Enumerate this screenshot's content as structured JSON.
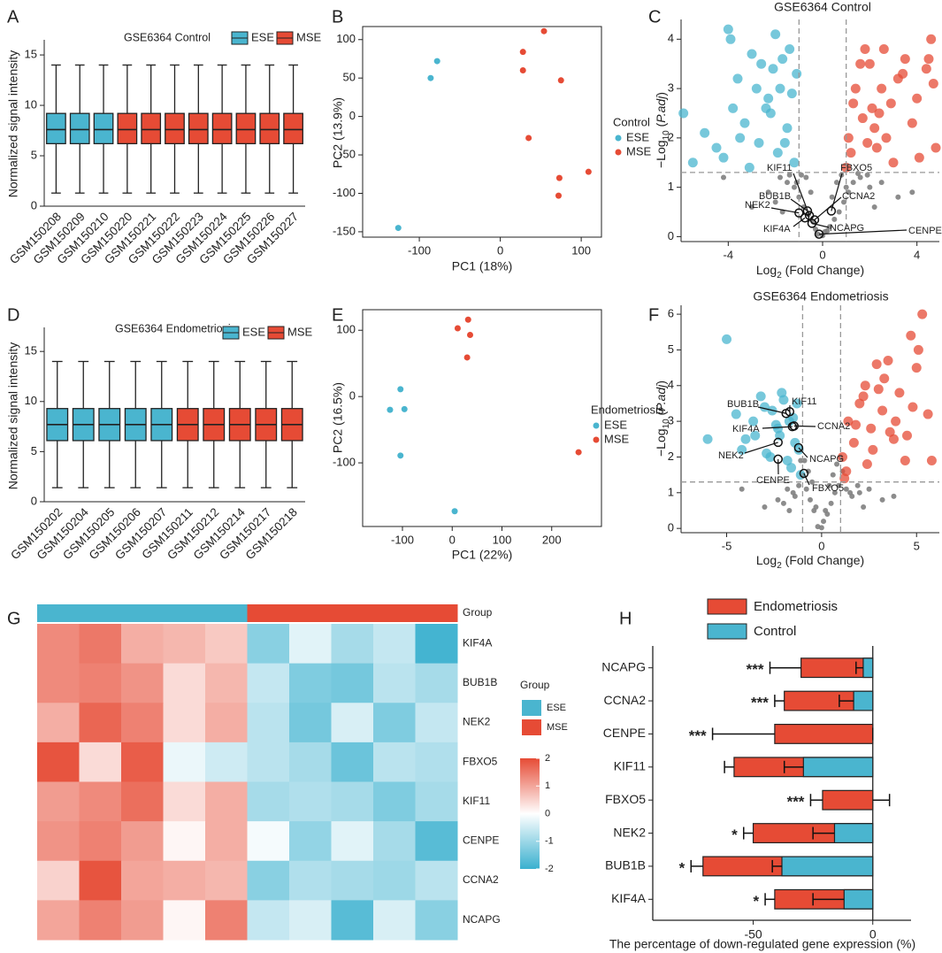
{
  "chart_data": [
    {
      "type": "box",
      "panel": "A",
      "title": "GSE6364 Control",
      "ylabel": "Normalized signal intensity",
      "categories": [
        "GSM150208",
        "GSM150209",
        "GSM150210",
        "GSM150220",
        "GSM150221",
        "GSM150222",
        "GSM150223",
        "GSM150224",
        "GSM150225",
        "GSM150226",
        "GSM150227"
      ],
      "groups": [
        "ESE",
        "ESE",
        "ESE",
        "MSE",
        "MSE",
        "MSE",
        "MSE",
        "MSE",
        "MSE",
        "MSE",
        "MSE"
      ],
      "legend": [
        {
          "name": "ESE",
          "color": "#4ab5cf"
        },
        {
          "name": "MSE",
          "color": "#e64b35"
        }
      ],
      "min": [
        1.3,
        1.3,
        1.3,
        1.3,
        1.3,
        1.3,
        1.3,
        1.3,
        1.3,
        1.3,
        1.3
      ],
      "q1": [
        6.2,
        6.2,
        6.2,
        6.2,
        6.2,
        6.2,
        6.2,
        6.2,
        6.2,
        6.2,
        6.2
      ],
      "median": [
        7.6,
        7.6,
        7.6,
        7.6,
        7.6,
        7.6,
        7.6,
        7.6,
        7.6,
        7.6,
        7.6
      ],
      "q3": [
        9.2,
        9.2,
        9.2,
        9.2,
        9.2,
        9.2,
        9.2,
        9.2,
        9.2,
        9.2,
        9.2
      ],
      "max": [
        14,
        14,
        14,
        14,
        14,
        14,
        14,
        14,
        14,
        14,
        14
      ],
      "ylim": [
        0,
        16.5
      ],
      "yticks": [
        0,
        5,
        10,
        15
      ]
    },
    {
      "type": "scatter",
      "panel": "B",
      "xlabel": "PC1 (18%)",
      "ylabel": "PC2 (13.9%)",
      "legend_title": "Control",
      "series": [
        {
          "name": "ESE",
          "color": "#4ab5cf",
          "x": [
            -126,
            -86,
            -78
          ],
          "y": [
            -145,
            50,
            72
          ]
        },
        {
          "name": "MSE",
          "color": "#e64b35",
          "x": [
            54,
            28,
            28,
            75,
            35,
            73,
            72,
            109
          ],
          "y": [
            111,
            84,
            60,
            47,
            -28,
            -80,
            -103,
            -72
          ]
        }
      ],
      "xlim": [
        -170,
        125
      ],
      "xticks": [
        -100,
        0,
        100
      ],
      "ylim": [
        -157,
        117
      ],
      "yticks": [
        -150,
        -100,
        -50,
        0,
        50,
        100
      ]
    },
    {
      "type": "volcano",
      "panel": "C",
      "title": "GSE6364 Control",
      "xlabel": [
        {
          "t": "Log"
        },
        {
          "t": "2",
          "sub": true
        },
        {
          "t": " (Fold Change)"
        }
      ],
      "ylabel": [
        {
          "t": "−Log"
        },
        {
          "t": "10",
          "sub": true
        },
        {
          "t": " ("
        },
        {
          "t": "P.adj",
          "italic": true
        },
        {
          "t": ")"
        }
      ],
      "series": [
        {
          "color": "#7f7f7f",
          "x": [
            -0.2,
            0.1,
            0.3,
            -0.4,
            0.5,
            -0.6,
            0.7,
            -0.8,
            0.9,
            -1.0,
            1.1,
            -1.2,
            1.3,
            -1.5,
            1.6,
            -1.8,
            2.0,
            -2.3,
            2.5,
            -3.0,
            3.2,
            -0.9,
            0.8,
            -0.5,
            0.4,
            -1.4,
            1.5,
            -0.7,
            0.6,
            -2.0,
            2.2,
            0.0,
            -0.3,
            0.2,
            -1.1,
            1.0,
            3.8,
            -4.2,
            1.9,
            -1.7
          ],
          "y": [
            0.05,
            0.1,
            0.2,
            0.3,
            0.35,
            0.45,
            0.5,
            0.6,
            0.7,
            0.8,
            0.9,
            1.0,
            1.1,
            1.1,
            1.2,
            1.2,
            1.0,
            0.9,
            1.1,
            0.6,
            0.8,
            1.25,
            1.25,
            0.9,
            0.8,
            1.25,
            1.28,
            1.2,
            1.1,
            0.7,
            0.6,
            0.02,
            0.15,
            0.12,
            1.1,
            1.0,
            0.9,
            1.2,
            1.25,
            0.5
          ]
        },
        {
          "color": "#4ab5cf",
          "x": [
            -1.2,
            -1.5,
            -1.8,
            -2.1,
            -2.4,
            -2.7,
            -3.0,
            -3.3,
            -3.6,
            -3.9,
            -4.2,
            -4.5,
            -5.0,
            -5.5,
            -5.9,
            -1.4,
            -1.9,
            -2.3,
            -2.6,
            -3.1,
            -1.3,
            -2.0,
            -2.8,
            -3.5,
            -4.0,
            -1.6,
            -2.2,
            -1.1,
            -1.7,
            -3.8
          ],
          "y": [
            1.5,
            2.2,
            3.0,
            3.4,
            2.6,
            1.9,
            3.7,
            2.3,
            3.2,
            4.0,
            1.6,
            1.8,
            2.1,
            1.5,
            2.5,
            3.8,
            1.7,
            2.8,
            3.5,
            1.4,
            2.9,
            4.1,
            3.0,
            2.0,
            4.2,
            1.9,
            2.5,
            3.3,
            3.6,
            2.6
          ]
        },
        {
          "color": "#e64b35",
          "x": [
            1.1,
            1.4,
            1.7,
            2.0,
            2.3,
            2.6,
            2.9,
            3.2,
            3.5,
            3.8,
            4.1,
            4.4,
            4.6,
            4.8,
            4.7,
            1.3,
            1.8,
            2.2,
            2.5,
            3.0,
            1.2,
            2.1,
            2.7,
            3.4,
            4.0,
            1.6,
            2.4,
            1.0,
            1.9,
            4.5
          ],
          "y": [
            2.0,
            3.0,
            2.4,
            3.5,
            1.8,
            3.8,
            2.7,
            3.2,
            3.6,
            2.3,
            1.6,
            3.4,
            4.0,
            1.8,
            3.1,
            2.7,
            3.8,
            2.2,
            3.0,
            1.5,
            1.7,
            2.6,
            2.0,
            3.3,
            2.8,
            3.5,
            2.5,
            1.4,
            1.9,
            3.6
          ]
        }
      ],
      "thresholds": {
        "x": [
          -1,
          1
        ],
        "y": 1.3
      },
      "highlights": [
        {
          "label": "KIF11",
          "x": -0.56,
          "y": 0.43
        },
        {
          "label": "FBXO5",
          "x": 0.37,
          "y": 0.52
        },
        {
          "label": "BUB1B",
          "x": -0.64,
          "y": 0.52
        },
        {
          "label": "CCNA2",
          "x": -0.34,
          "y": 0.34
        },
        {
          "label": "NEK2",
          "x": -1.0,
          "y": 0.48
        },
        {
          "label": "KIF4A",
          "x": -0.75,
          "y": 0.38
        },
        {
          "label": "NCAPG",
          "x": -0.45,
          "y": 0.27
        },
        {
          "label": "CENPE",
          "x": -0.15,
          "y": 0.05
        }
      ],
      "xlim": [
        -6.0,
        4.95
      ],
      "xticks": [
        -4,
        0,
        4
      ],
      "ylim": [
        -0.1,
        4.4
      ],
      "yticks": [
        0,
        1,
        2,
        3,
        4
      ]
    },
    {
      "type": "box",
      "panel": "D",
      "title": "GSE6364 Endometriosis",
      "ylabel": "Normalized signal intensity",
      "categories": [
        "GSM150202",
        "GSM150204",
        "GSM150205",
        "GSM150206",
        "GSM150207",
        "GSM150211",
        "GSM150212",
        "GSM150214",
        "GSM150217",
        "GSM150218"
      ],
      "groups": [
        "ESE",
        "ESE",
        "ESE",
        "ESE",
        "ESE",
        "MSE",
        "MSE",
        "MSE",
        "MSE",
        "MSE"
      ],
      "legend": [
        {
          "name": "ESE",
          "color": "#4ab5cf"
        },
        {
          "name": "MSE",
          "color": "#e64b35"
        }
      ],
      "min": [
        1.4,
        1.4,
        1.4,
        1.4,
        1.4,
        1.4,
        1.4,
        1.4,
        1.4,
        1.4
      ],
      "q1": [
        6.1,
        6.1,
        6.1,
        6.1,
        6.1,
        6.1,
        6.1,
        6.1,
        6.1,
        6.1
      ],
      "median": [
        7.7,
        7.7,
        7.7,
        7.7,
        7.7,
        7.7,
        7.7,
        7.7,
        7.7,
        7.7
      ],
      "q3": [
        9.3,
        9.3,
        9.3,
        9.3,
        9.3,
        9.3,
        9.3,
        9.3,
        9.3,
        9.3
      ],
      "max": [
        14,
        14,
        14,
        14,
        14,
        14,
        14,
        14,
        14,
        14
      ],
      "ylim": [
        0,
        17.4
      ],
      "yticks": [
        0,
        5,
        10,
        15
      ]
    },
    {
      "type": "scatter",
      "panel": "E",
      "xlabel": "PC1 (22%)",
      "ylabel": "PC2 (16.5%)",
      "legend_title": "Endometriosis",
      "series": [
        {
          "name": "ESE",
          "color": "#4ab5cf",
          "x": [
            -104,
            -125,
            -96,
            -104,
            5
          ],
          "y": [
            11,
            -20,
            -19,
            -89,
            -173
          ]
        },
        {
          "name": "MSE",
          "color": "#e64b35",
          "x": [
            11,
            32,
            36,
            30,
            254
          ],
          "y": [
            103,
            116,
            93,
            59,
            -84
          ]
        }
      ],
      "xlim": [
        -180,
        300
      ],
      "xticks": [
        -100,
        0,
        100,
        200
      ],
      "ylim": [
        -196,
        131
      ],
      "yticks": [
        -100,
        0,
        100
      ]
    },
    {
      "type": "volcano",
      "panel": "F",
      "title": "GSE6364 Endometriosis",
      "xlabel": [
        {
          "t": "Log"
        },
        {
          "t": "2",
          "sub": true
        },
        {
          "t": " (Fold Change)"
        }
      ],
      "ylabel": [
        {
          "t": "−Log"
        },
        {
          "t": "10",
          "sub": true
        },
        {
          "t": " ("
        },
        {
          "t": "P.adj",
          "italic": true
        },
        {
          "t": ")"
        }
      ],
      "series": [
        {
          "color": "#7f7f7f",
          "x": [
            -0.2,
            0.1,
            0.3,
            -0.4,
            0.5,
            -0.6,
            0.7,
            -0.8,
            0.9,
            -1.0,
            1.1,
            -1.2,
            1.3,
            -1.5,
            1.6,
            -1.8,
            2.0,
            -2.3,
            2.5,
            -3.0,
            3.2,
            -0.9,
            0.8,
            -0.5,
            0.4,
            -1.4,
            1.5,
            -0.7,
            0.6,
            -2.0,
            2.2,
            0.0,
            -0.3,
            0.2,
            -1.1,
            1.0,
            3.8,
            -4.2,
            1.9,
            -1.7
          ],
          "y": [
            0.05,
            0.2,
            0.4,
            0.5,
            0.7,
            0.8,
            1.0,
            1.1,
            1.2,
            1.5,
            1.6,
            1.2,
            1.1,
            1.0,
            0.9,
            1.1,
            1.0,
            0.8,
            1.1,
            0.6,
            0.8,
            1.9,
            1.8,
            1.3,
            1.2,
            0.9,
            1.0,
            1.6,
            1.5,
            0.7,
            0.6,
            0.02,
            0.6,
            0.5,
            1.9,
            2.0,
            0.9,
            1.1,
            1.2,
            0.5
          ]
        },
        {
          "color": "#4ab5cf",
          "x": [
            -1.1,
            -1.4,
            -1.7,
            -2.0,
            -2.3,
            -2.6,
            -2.9,
            -3.2,
            -3.5,
            -4.0,
            -4.5,
            -5.0,
            -6.0,
            -1.3,
            -1.8,
            -2.4,
            -3.0,
            -1.2,
            -2.1,
            -2.7,
            -1.6,
            -3.6,
            -4.2,
            -1.5,
            -2.2
          ],
          "y": [
            1.5,
            2.4,
            3.0,
            3.6,
            2.8,
            3.3,
            2.1,
            3.7,
            2.6,
            2.5,
            3.2,
            5.3,
            2.5,
            3.5,
            1.9,
            2.9,
            3.4,
            2.2,
            3.8,
            2.0,
            1.7,
            3.0,
            2.2,
            3.1,
            2.6
          ]
        },
        {
          "color": "#e64b35",
          "x": [
            1.1,
            1.4,
            1.7,
            2.0,
            2.3,
            2.6,
            2.9,
            3.2,
            3.5,
            3.8,
            4.1,
            4.4,
            4.7,
            5.0,
            5.3,
            5.6,
            5.8,
            1.3,
            1.8,
            2.2,
            2.7,
            3.3,
            3.9,
            4.5,
            5.1,
            1.2,
            2.4,
            3.0,
            3.6,
            4.8
          ],
          "y": [
            2.0,
            3.0,
            2.4,
            3.5,
            4.0,
            2.8,
            4.6,
            3.3,
            4.7,
            2.5,
            3.8,
            1.9,
            5.4,
            4.5,
            6.0,
            3.2,
            1.9,
            1.6,
            2.9,
            3.7,
            2.2,
            4.2,
            3.0,
            2.6,
            5.0,
            1.4,
            1.8,
            3.9,
            2.7,
            3.4
          ]
        }
      ],
      "thresholds": {
        "x": [
          -1,
          1
        ],
        "y": 1.3
      },
      "highlights": [
        {
          "label": "KIF11",
          "x": -1.68,
          "y": 3.27
        },
        {
          "label": "BUB1B",
          "x": -1.87,
          "y": 3.22
        },
        {
          "label": "CCNA2",
          "x": -1.45,
          "y": 2.87
        },
        {
          "label": "KIF4A",
          "x": -1.54,
          "y": 2.85
        },
        {
          "label": "NEK2",
          "x": -2.29,
          "y": 2.41
        },
        {
          "label": "NCAPG",
          "x": -1.21,
          "y": 2.26
        },
        {
          "label": "CENPE",
          "x": -2.29,
          "y": 1.94
        },
        {
          "label": "FBXO5",
          "x": -0.93,
          "y": 1.54
        }
      ],
      "xlim": [
        -7.4,
        6.2
      ],
      "xticks": [
        -5,
        0,
        5
      ],
      "ylim": [
        -0.12,
        6.25
      ],
      "yticks": [
        0,
        1,
        2,
        3,
        4,
        5,
        6
      ]
    },
    {
      "type": "heatmap",
      "panel": "G",
      "group_label": "Group",
      "column_groups": [
        "ESE",
        "ESE",
        "ESE",
        "ESE",
        "ESE",
        "MSE",
        "MSE",
        "MSE",
        "MSE",
        "MSE"
      ],
      "rows": [
        "KIF4A",
        "BUB1B",
        "NEK2",
        "FBXO5",
        "KIF11",
        "CENPE",
        "CCNA2",
        "NCAPG"
      ],
      "matrix": [
        [
          1.3,
          1.5,
          0.9,
          0.8,
          0.6,
          -1.2,
          -0.3,
          -0.9,
          -0.6,
          -1.9
        ],
        [
          1.3,
          1.4,
          1.2,
          0.4,
          0.8,
          -0.6,
          -1.3,
          -1.4,
          -0.7,
          -0.9
        ],
        [
          0.9,
          1.7,
          1.4,
          0.4,
          0.9,
          -0.7,
          -1.4,
          -0.4,
          -1.3,
          -0.6
        ],
        [
          1.9,
          0.4,
          1.8,
          -0.2,
          -0.5,
          -0.7,
          -0.9,
          -1.5,
          -0.7,
          -0.8
        ],
        [
          1.1,
          1.3,
          1.6,
          0.4,
          0.9,
          -0.9,
          -0.8,
          -0.9,
          -1.3,
          -0.9
        ],
        [
          1.2,
          1.4,
          1.1,
          0.1,
          0.9,
          -0.1,
          -1.1,
          -0.3,
          -0.9,
          -1.7
        ],
        [
          0.5,
          1.9,
          1.0,
          0.9,
          0.8,
          -1.2,
          -0.8,
          -0.9,
          -1.0,
          -0.7
        ],
        [
          1.0,
          1.4,
          1.1,
          0.1,
          1.4,
          -0.6,
          -0.4,
          -1.7,
          -0.4,
          -1.2
        ]
      ],
      "legend_title": "Group",
      "groups": [
        {
          "name": "ESE",
          "color": "#4ab5cf"
        },
        {
          "name": "MSE",
          "color": "#e64b35"
        }
      ],
      "colorscale": {
        "low": "#3ab0cf",
        "mid": "#ffffff",
        "high": "#e64b35"
      },
      "zlim": [
        -2,
        2
      ],
      "zticks": [
        2,
        1,
        0,
        -1,
        -2
      ]
    },
    {
      "type": "hbar",
      "panel": "H",
      "categories": [
        "NCAPG",
        "CCNA2",
        "CENPE",
        "KIF11",
        "FBXO5",
        "NEK2",
        "BUB1B",
        "KIF4A"
      ],
      "series": [
        {
          "name": "Endometriosis",
          "color": "#e64b35",
          "values": [
            -30,
            -37,
            -41,
            -58,
            -21,
            -50,
            -71,
            -41
          ],
          "errors": [
            13,
            4,
            26,
            4,
            5,
            4,
            5,
            4
          ]
        },
        {
          "name": "Control",
          "color": "#4ab5cf",
          "values": [
            -4,
            -8,
            0,
            -29,
            0,
            -16,
            -38,
            -12
          ],
          "errors": [
            3,
            6,
            0,
            8,
            7,
            9,
            4,
            13
          ]
        }
      ],
      "annotations": [
        "***",
        "***",
        "***",
        null,
        "***",
        "*",
        "*",
        "*"
      ],
      "xlabel": "The percentage of down-regulated gene expression (%)",
      "xlim": [
        -92,
        16
      ],
      "xticks": [
        -50,
        0
      ]
    }
  ]
}
